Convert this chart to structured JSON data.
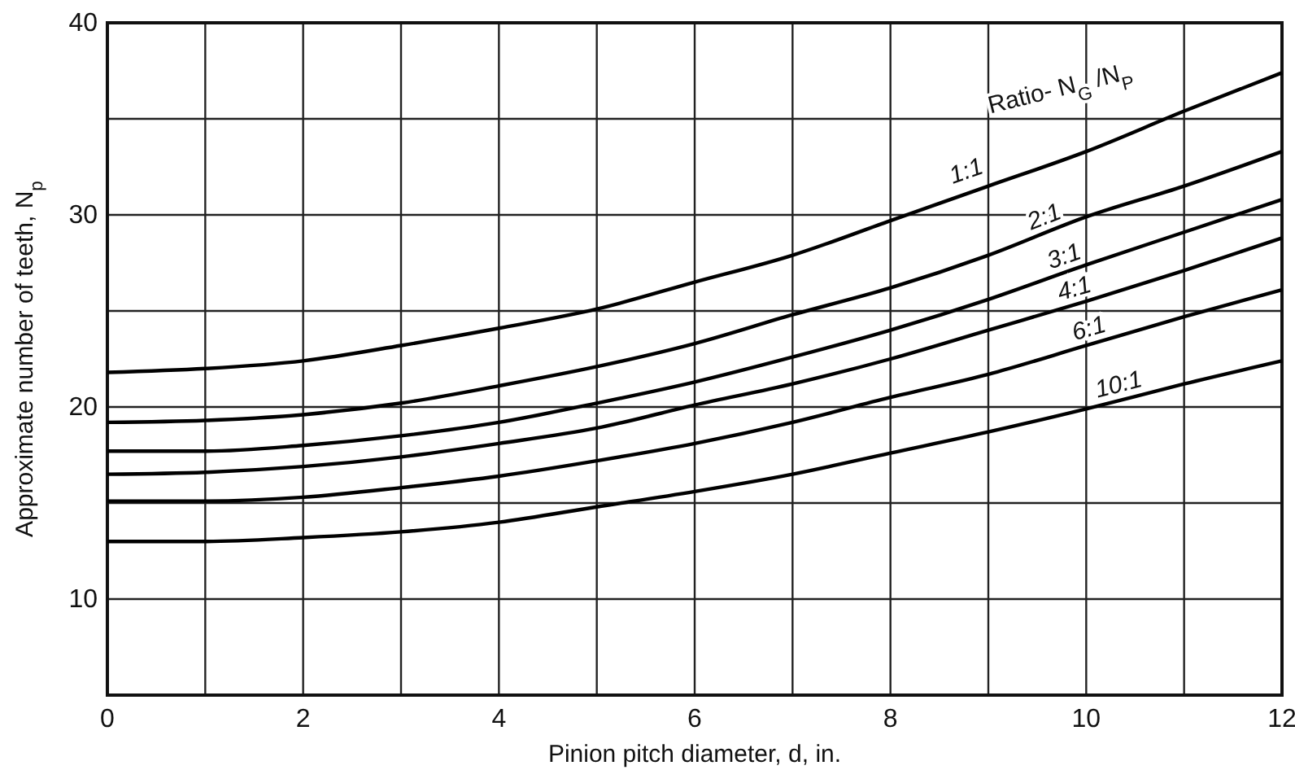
{
  "chart_data": {
    "type": "line",
    "xlabel": "Pinion pitch diameter, d, in.",
    "ylabel": "Approximate number of teeth, N$_{p}$",
    "legend_title": "Ratio- N$_{G}$ /N$_{P}$",
    "x": [
      0,
      1,
      2,
      3,
      4,
      5,
      6,
      7,
      8,
      9,
      10,
      11,
      12
    ],
    "series": [
      {
        "name": "1:1",
        "color": "#000000",
        "values": [
          21.8,
          22.0,
          22.4,
          23.2,
          24.1,
          25.1,
          26.5,
          27.9,
          29.7,
          31.5,
          33.3,
          35.4,
          37.4
        ]
      },
      {
        "name": "2:1",
        "color": "#000000",
        "values": [
          19.2,
          19.3,
          19.6,
          20.2,
          21.1,
          22.1,
          23.3,
          24.8,
          26.2,
          27.9,
          29.9,
          31.5,
          33.3
        ]
      },
      {
        "name": "3:1",
        "color": "#000000",
        "values": [
          17.7,
          17.7,
          18.0,
          18.5,
          19.2,
          20.2,
          21.3,
          22.6,
          24.0,
          25.6,
          27.4,
          29.1,
          30.8
        ]
      },
      {
        "name": "4:1",
        "color": "#000000",
        "values": [
          16.5,
          16.6,
          16.9,
          17.4,
          18.1,
          18.9,
          20.1,
          21.2,
          22.5,
          24.0,
          25.5,
          27.1,
          28.8
        ]
      },
      {
        "name": "6:1",
        "color": "#000000",
        "values": [
          15.1,
          15.1,
          15.3,
          15.8,
          16.4,
          17.2,
          18.1,
          19.2,
          20.5,
          21.7,
          23.2,
          24.7,
          26.1
        ]
      },
      {
        "name": "10:1",
        "color": "#000000",
        "values": [
          13.0,
          13.0,
          13.2,
          13.5,
          14.0,
          14.8,
          15.6,
          16.5,
          17.6,
          18.7,
          19.9,
          21.2,
          22.4
        ]
      }
    ],
    "xlim": [
      0,
      12
    ],
    "xticks": [
      0,
      {
        "value": 1,
        "label": null
      },
      2,
      {
        "value": 3,
        "label": null
      },
      4,
      {
        "value": 5,
        "label": null
      },
      6,
      {
        "value": 7,
        "label": null
      },
      8,
      {
        "value": 9,
        "label": null
      },
      10,
      {
        "value": 11,
        "label": null
      },
      12
    ],
    "ylim": [
      5,
      40
    ],
    "yticks": [
      10,
      {
        "value": 15,
        "label": null
      },
      20,
      {
        "value": 25,
        "label": null
      },
      30,
      {
        "value": 35,
        "label": null
      },
      40
    ],
    "grid": true,
    "marker": "none",
    "line_style": "solid"
  }
}
